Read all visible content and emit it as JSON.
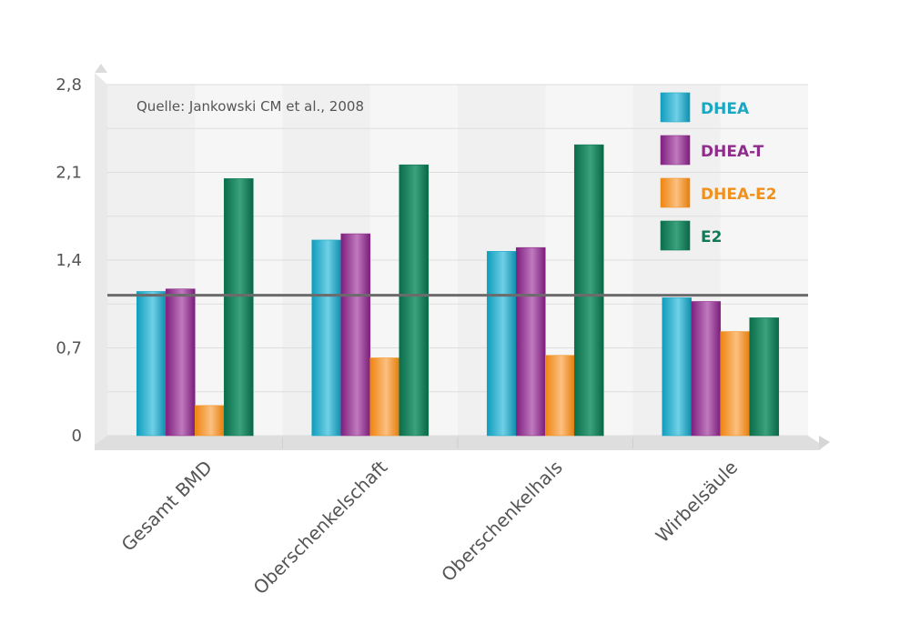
{
  "chart_data": {
    "type": "bar",
    "source_note": "Quelle: Jankowski CM et al., 2008",
    "categories": [
      "Gesamt BMD",
      "Oberschenkelschaft",
      "Oberschenkelhals",
      "Wirbelsäule"
    ],
    "series": [
      {
        "name": "DHEA",
        "color": "#1aa7c4",
        "values": [
          1.15,
          1.56,
          1.47,
          1.1
        ]
      },
      {
        "name": "DHEA-T",
        "color": "#8e2d8c",
        "values": [
          1.17,
          1.61,
          1.5,
          1.07
        ]
      },
      {
        "name": "DHEA-E2",
        "color": "#f0901e",
        "values": [
          0.24,
          0.62,
          0.64,
          0.83
        ]
      },
      {
        "name": "E2",
        "color": "#0f7a55",
        "values": [
          2.05,
          2.16,
          2.32,
          0.94
        ]
      }
    ],
    "yticks": [
      "0",
      "0,7",
      "1,4",
      "2,1",
      "2,8"
    ],
    "ylim": [
      0,
      2.8
    ],
    "reference_line": 1.12,
    "legend_position": "top-right",
    "grid": true
  }
}
